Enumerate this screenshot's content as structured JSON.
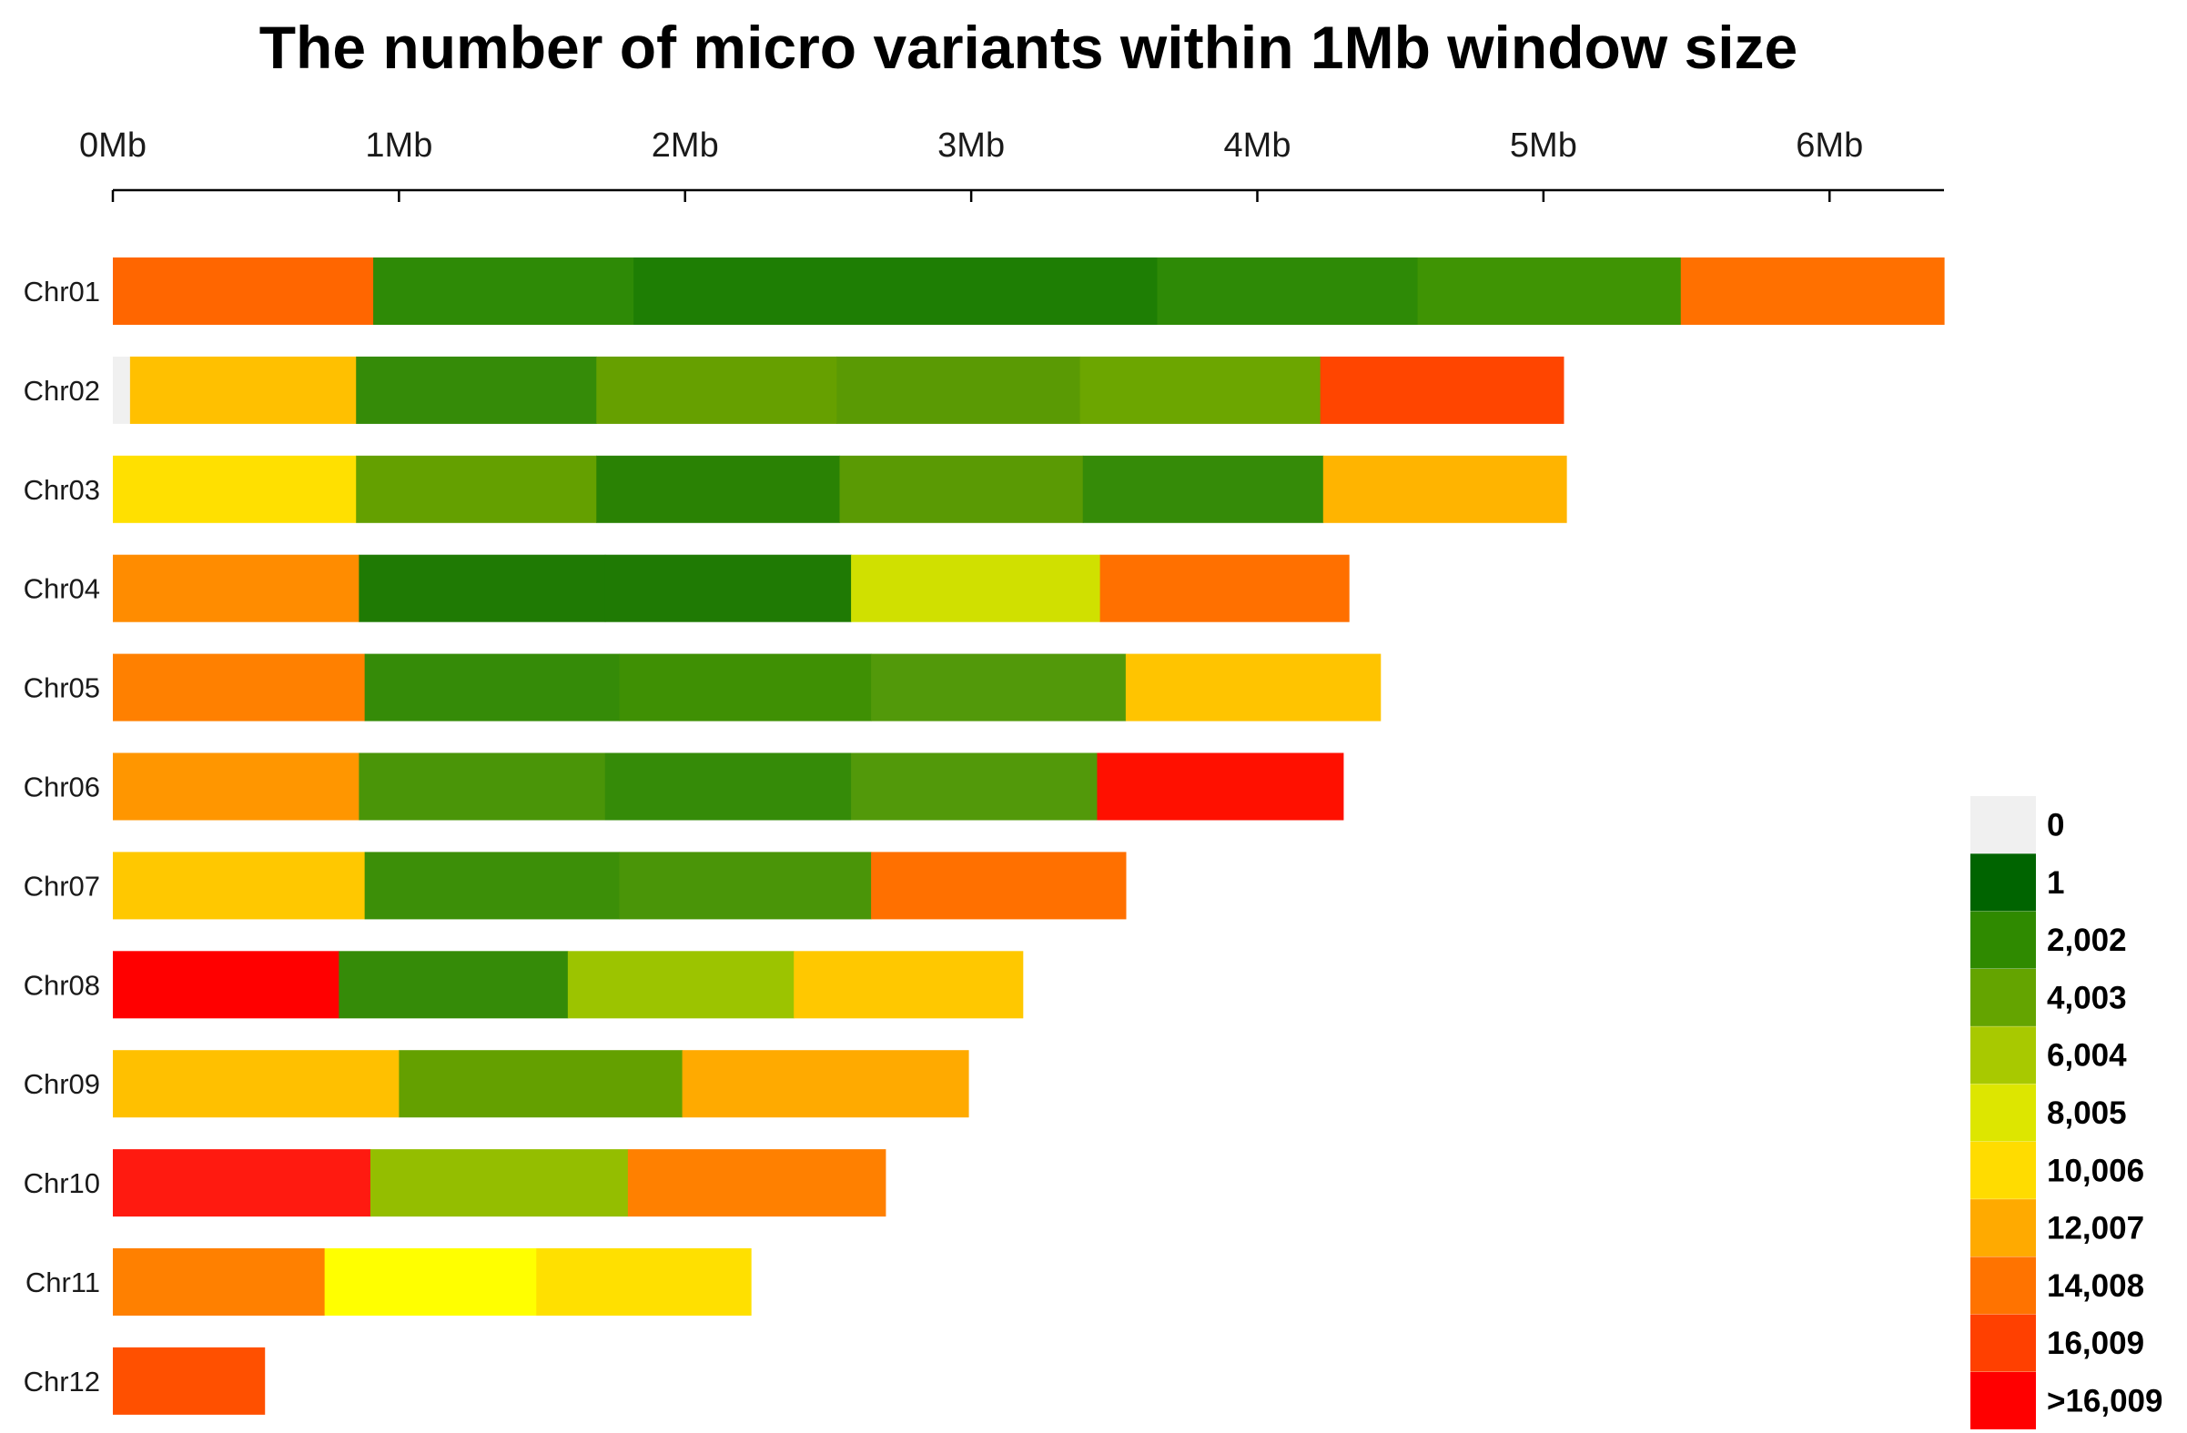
{
  "chart_data": {
    "type": "heatmap",
    "title": "The number of micro variants within 1Mb window size",
    "xlabel": "",
    "ylabel": "",
    "x_unit": "Mb",
    "xlim": [
      0,
      6.4
    ],
    "x_ticks": [
      "0Mb",
      "1Mb",
      "2Mb",
      "3Mb",
      "4Mb",
      "5Mb",
      "6Mb"
    ],
    "legend": {
      "placement": "bottom-right",
      "labels": [
        "0",
        "1",
        "2,002",
        "4,003",
        "6,004",
        "8,005",
        "10,006",
        "12,007",
        "14,008",
        "16,009",
        ">16,009"
      ],
      "colors": [
        "#f0f0f0",
        "#006400",
        "#2f8a00",
        "#64a400",
        "#a8c900",
        "#dde600",
        "#ffdc00",
        "#ffaa00",
        "#ff7300",
        "#ff4000",
        "#ff0000"
      ]
    },
    "chromosomes": [
      {
        "name": "Chr01",
        "length": 6.4,
        "bins": [
          {
            "start": 0.0,
            "end": 0.91,
            "color": "#ff6600"
          },
          {
            "start": 0.91,
            "end": 1.82,
            "color": "#2e8a06"
          },
          {
            "start": 1.82,
            "end": 2.73,
            "color": "#1e7e04"
          },
          {
            "start": 2.73,
            "end": 3.65,
            "color": "#1e7e04"
          },
          {
            "start": 3.65,
            "end": 4.56,
            "color": "#2e8a06"
          },
          {
            "start": 4.56,
            "end": 5.48,
            "color": "#3f9404"
          },
          {
            "start": 5.48,
            "end": 6.4,
            "color": "#ff7000"
          }
        ]
      },
      {
        "name": "Chr02",
        "length": 5.07,
        "bins": [
          {
            "start": 0.0,
            "end": 0.06,
            "color": "#f0f0f0"
          },
          {
            "start": 0.06,
            "end": 0.85,
            "color": "#ffc000"
          },
          {
            "start": 0.85,
            "end": 1.69,
            "color": "#358b08"
          },
          {
            "start": 1.69,
            "end": 2.53,
            "color": "#66a000"
          },
          {
            "start": 2.53,
            "end": 3.38,
            "color": "#5a9a04"
          },
          {
            "start": 3.38,
            "end": 4.22,
            "color": "#6ca600"
          },
          {
            "start": 4.22,
            "end": 5.07,
            "color": "#ff4500"
          }
        ]
      },
      {
        "name": "Chr03",
        "length": 5.08,
        "bins": [
          {
            "start": 0.0,
            "end": 0.85,
            "color": "#ffe000"
          },
          {
            "start": 0.85,
            "end": 1.69,
            "color": "#64a000"
          },
          {
            "start": 1.69,
            "end": 2.54,
            "color": "#2a8204"
          },
          {
            "start": 2.54,
            "end": 3.39,
            "color": "#5a9a04"
          },
          {
            "start": 3.39,
            "end": 4.23,
            "color": "#358b08"
          },
          {
            "start": 4.23,
            "end": 5.08,
            "color": "#ffb400"
          }
        ]
      },
      {
        "name": "Chr04",
        "length": 4.32,
        "bins": [
          {
            "start": 0.0,
            "end": 0.86,
            "color": "#ff8c00"
          },
          {
            "start": 0.86,
            "end": 1.72,
            "color": "#1f7a04"
          },
          {
            "start": 1.72,
            "end": 2.58,
            "color": "#1f7a04"
          },
          {
            "start": 2.58,
            "end": 3.45,
            "color": "#d0e000"
          },
          {
            "start": 3.45,
            "end": 4.32,
            "color": "#ff7000"
          }
        ]
      },
      {
        "name": "Chr05",
        "length": 4.43,
        "bins": [
          {
            "start": 0.0,
            "end": 0.88,
            "color": "#ff8000"
          },
          {
            "start": 0.88,
            "end": 1.77,
            "color": "#358b08"
          },
          {
            "start": 1.77,
            "end": 2.65,
            "color": "#3f9004"
          },
          {
            "start": 2.65,
            "end": 3.54,
            "color": "#52990a"
          },
          {
            "start": 3.54,
            "end": 4.43,
            "color": "#ffc400"
          }
        ]
      },
      {
        "name": "Chr06",
        "length": 4.3,
        "bins": [
          {
            "start": 0.0,
            "end": 0.86,
            "color": "#ff9600"
          },
          {
            "start": 0.86,
            "end": 1.72,
            "color": "#4a9508"
          },
          {
            "start": 1.72,
            "end": 2.58,
            "color": "#358b08"
          },
          {
            "start": 2.58,
            "end": 3.44,
            "color": "#52990a"
          },
          {
            "start": 3.44,
            "end": 4.3,
            "color": "#ff1000"
          }
        ]
      },
      {
        "name": "Chr07",
        "length": 3.54,
        "bins": [
          {
            "start": 0.0,
            "end": 0.88,
            "color": "#ffc800"
          },
          {
            "start": 0.88,
            "end": 1.77,
            "color": "#3c8f08"
          },
          {
            "start": 1.77,
            "end": 2.65,
            "color": "#4a9508"
          },
          {
            "start": 2.65,
            "end": 3.54,
            "color": "#ff7000"
          }
        ]
      },
      {
        "name": "Chr08",
        "length": 3.18,
        "bins": [
          {
            "start": 0.0,
            "end": 0.79,
            "color": "#ff0000"
          },
          {
            "start": 0.79,
            "end": 1.59,
            "color": "#358b08"
          },
          {
            "start": 1.59,
            "end": 2.38,
            "color": "#9cc400"
          },
          {
            "start": 2.38,
            "end": 3.18,
            "color": "#ffc800"
          }
        ]
      },
      {
        "name": "Chr09",
        "length": 2.99,
        "bins": [
          {
            "start": 0.0,
            "end": 1.0,
            "color": "#ffc000"
          },
          {
            "start": 1.0,
            "end": 1.99,
            "color": "#64a000"
          },
          {
            "start": 1.99,
            "end": 2.99,
            "color": "#ffaa00"
          }
        ]
      },
      {
        "name": "Chr10",
        "length": 2.7,
        "bins": [
          {
            "start": 0.0,
            "end": 0.9,
            "color": "#ff1a10"
          },
          {
            "start": 0.9,
            "end": 1.8,
            "color": "#94be00"
          },
          {
            "start": 1.8,
            "end": 2.7,
            "color": "#ff8000"
          }
        ]
      },
      {
        "name": "Chr11",
        "length": 2.23,
        "bins": [
          {
            "start": 0.0,
            "end": 0.74,
            "color": "#ff8000"
          },
          {
            "start": 0.74,
            "end": 1.48,
            "color": "#ffff00"
          },
          {
            "start": 1.48,
            "end": 2.23,
            "color": "#ffe000"
          }
        ]
      },
      {
        "name": "Chr12",
        "length": 0.53,
        "bins": [
          {
            "start": 0.0,
            "end": 0.53,
            "color": "#ff5000"
          }
        ]
      }
    ]
  }
}
